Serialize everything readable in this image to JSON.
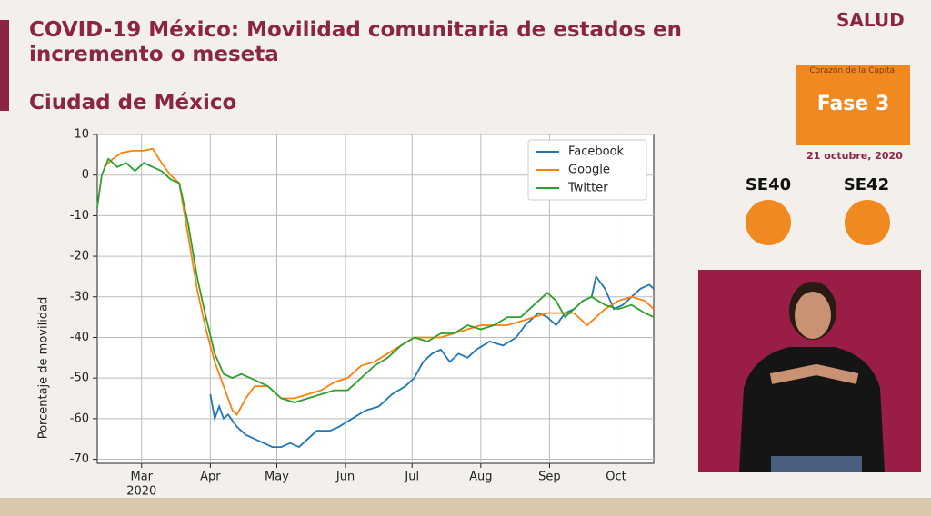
{
  "header": {
    "title": "COVID-19 México: Movilidad comunitaria de estados en incremento o meseta",
    "subtitle": "Ciudad de México"
  },
  "sidebar": {
    "logo": "SALUD",
    "caption": "Corazón de la Capital",
    "phase": "Fase 3",
    "date": "21 octubre, 2020",
    "weeks": [
      "SE40",
      "SE42"
    ]
  },
  "chart_data": {
    "type": "line",
    "ylabel": "Porcentaje de movilidad",
    "xlim": [
      41,
      292
    ],
    "xticks": [
      {
        "value": 61,
        "label": "Mar"
      },
      {
        "value": 92,
        "label": "Apr"
      },
      {
        "value": 122,
        "label": "May"
      },
      {
        "value": 153,
        "label": "Jun"
      },
      {
        "value": 183,
        "label": "Jul"
      },
      {
        "value": 214,
        "label": "Aug"
      },
      {
        "value": 245,
        "label": "Sep"
      },
      {
        "value": 275,
        "label": "Oct"
      }
    ],
    "x_year_label": "2020",
    "ylim": [
      -71,
      10
    ],
    "yticks": [
      10,
      0,
      -10,
      -20,
      -30,
      -40,
      -50,
      -60,
      -70
    ],
    "grid": true,
    "legend": "upper right",
    "series": [
      {
        "name": "Facebook",
        "color": "#1f77b4",
        "x": [
          92,
          94,
          96,
          98,
          100,
          104,
          108,
          112,
          116,
          120,
          124,
          128,
          132,
          136,
          140,
          146,
          150,
          156,
          162,
          168,
          174,
          180,
          184,
          188,
          192,
          196,
          200,
          204,
          208,
          212,
          218,
          224,
          230,
          234,
          240,
          244,
          248,
          252,
          256,
          260,
          264,
          266,
          270,
          274,
          278,
          282,
          286,
          290,
          292
        ],
        "values": [
          -54,
          -60,
          -57,
          -60,
          -59,
          -62,
          -64,
          -65,
          -66,
          -67,
          -67,
          -66,
          -67,
          -65,
          -63,
          -63,
          -62,
          -60,
          -58,
          -57,
          -54,
          -52,
          -50,
          -46,
          -44,
          -43,
          -46,
          -44,
          -45,
          -43,
          -41,
          -42,
          -40,
          -37,
          -34,
          -35,
          -37,
          -34,
          -33,
          -31,
          -30,
          -25,
          -28,
          -33,
          -32,
          -30,
          -28,
          -27,
          -28
        ]
      },
      {
        "name": "Google",
        "color": "#ff7f0e",
        "x": [
          44,
          48,
          52,
          57,
          62,
          66,
          70,
          74,
          78,
          82,
          86,
          90,
          94,
          98,
          102,
          104,
          108,
          112,
          118,
          124,
          130,
          136,
          142,
          148,
          154,
          160,
          166,
          172,
          178,
          184,
          190,
          196,
          202,
          208,
          214,
          220,
          226,
          232,
          238,
          244,
          250,
          256,
          262,
          266,
          270,
          276,
          282,
          288,
          292
        ],
        "values": [
          2,
          4,
          5.5,
          6,
          6,
          6.5,
          3,
          0,
          -2,
          -15,
          -28,
          -38,
          -46,
          -52,
          -58,
          -59,
          -55,
          -52,
          -52,
          -55,
          -55,
          -54,
          -53,
          -51,
          -50,
          -47,
          -46,
          -44,
          -42,
          -40,
          -40,
          -40,
          -39,
          -38,
          -37,
          -37,
          -37,
          -36,
          -35,
          -34,
          -34,
          -34,
          -37,
          -35,
          -33,
          -31,
          -30,
          -31,
          -33
        ]
      },
      {
        "name": "Twitter",
        "color": "#2ca02c",
        "x": [
          41,
          43,
          46,
          50,
          54,
          58,
          62,
          66,
          70,
          74,
          78,
          82,
          86,
          90,
          94,
          98,
          102,
          106,
          110,
          114,
          118,
          124,
          130,
          136,
          142,
          148,
          154,
          160,
          166,
          172,
          178,
          184,
          190,
          196,
          202,
          208,
          214,
          220,
          226,
          232,
          238,
          244,
          248,
          252,
          256,
          260,
          264,
          270,
          276,
          282,
          288,
          292
        ],
        "values": [
          -8,
          0,
          4,
          2,
          3,
          1,
          3,
          2,
          1,
          -1,
          -2,
          -12,
          -25,
          -35,
          -44,
          -49,
          -50,
          -49,
          -50,
          -51,
          -52,
          -55,
          -56,
          -55,
          -54,
          -53,
          -53,
          -50,
          -47,
          -45,
          -42,
          -40,
          -41,
          -39,
          -39,
          -37,
          -38,
          -37,
          -35,
          -35,
          -32,
          -29,
          -31,
          -35,
          -33,
          -31,
          -30,
          -32,
          -33,
          -32,
          -34,
          -35
        ]
      }
    ]
  }
}
